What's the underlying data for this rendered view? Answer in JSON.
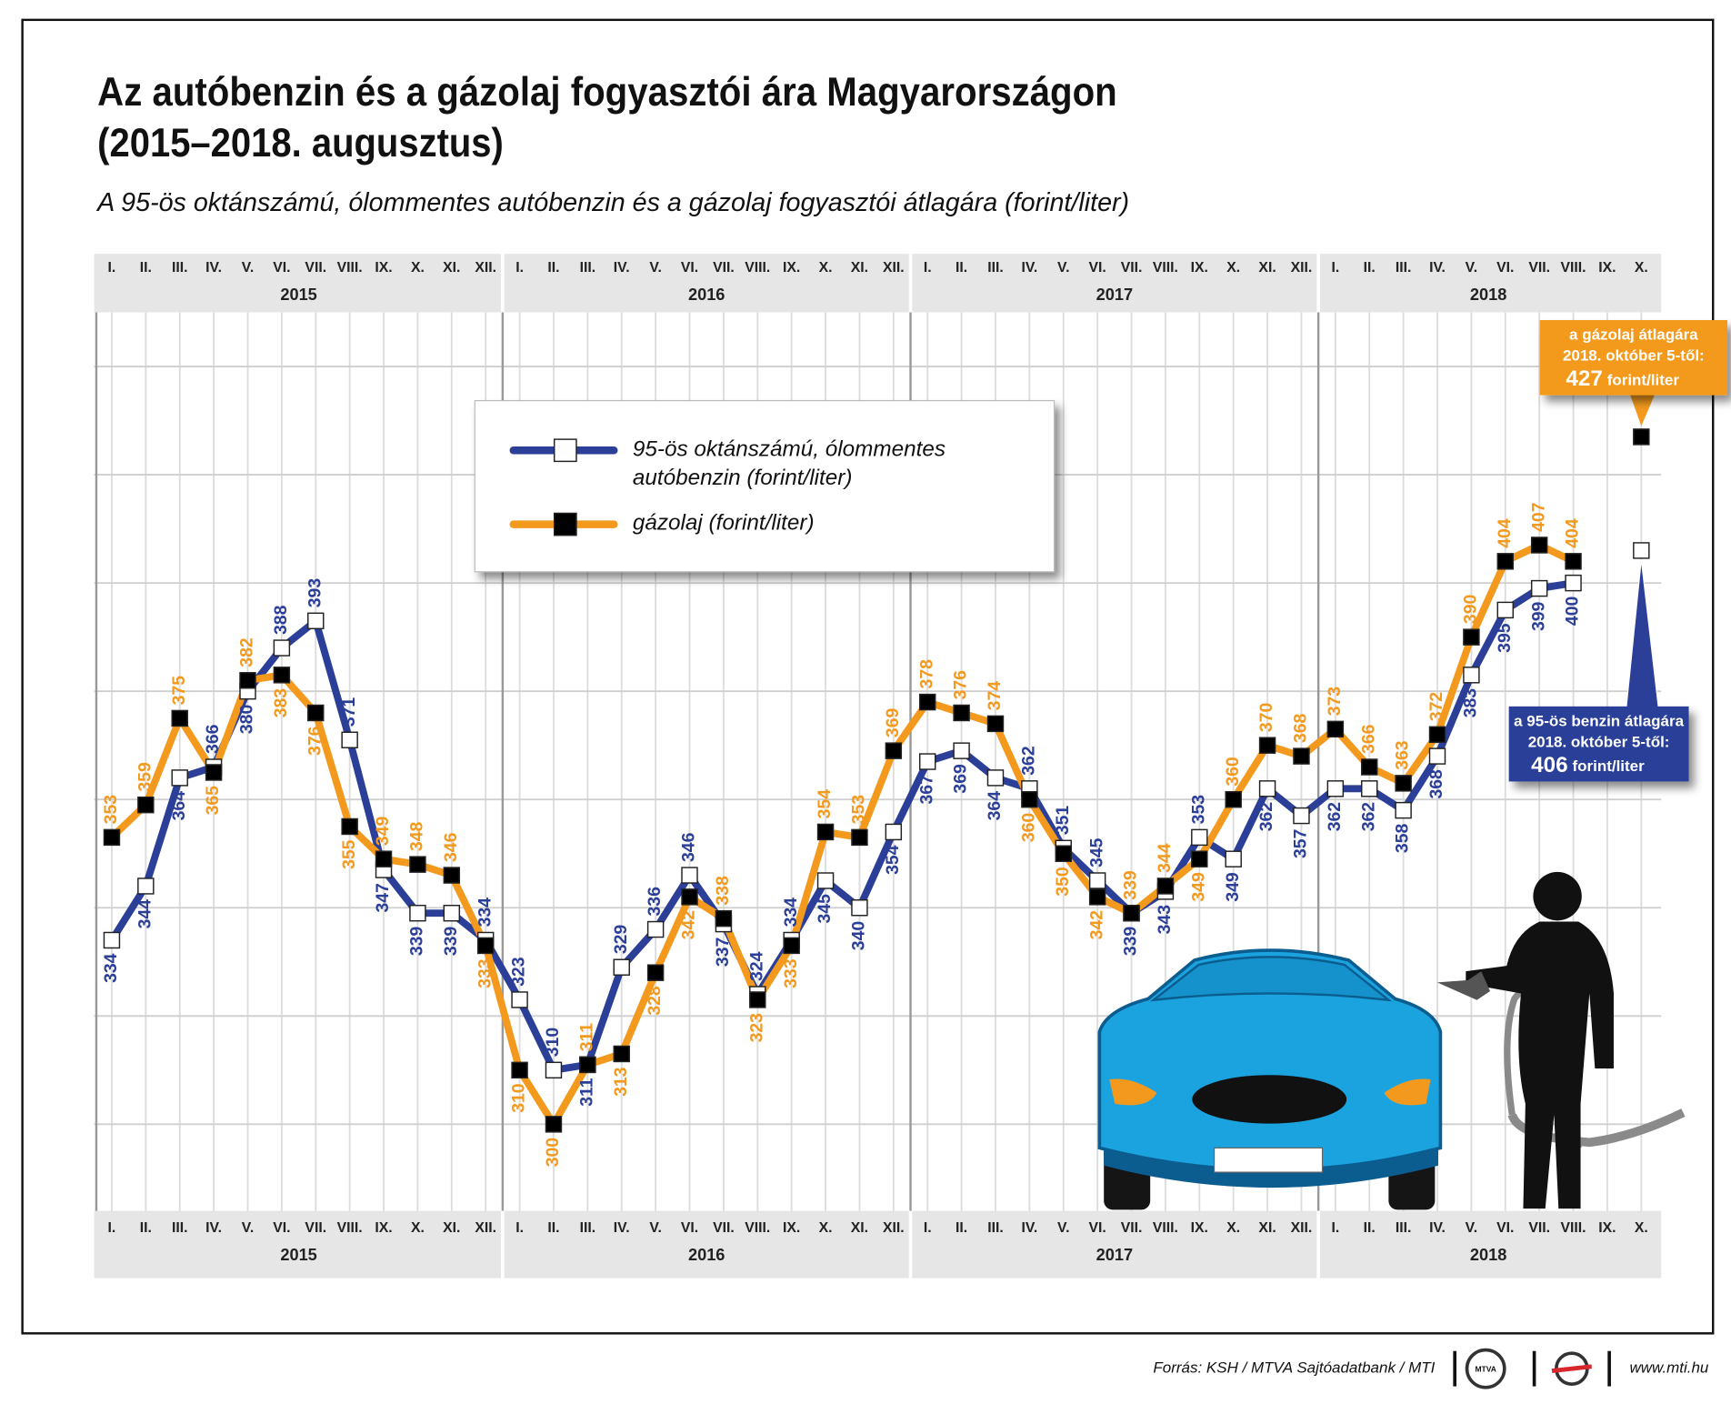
{
  "chart_data": {
    "type": "line",
    "title": [
      "Az autóbenzin és a gázolaj fogyasztói ára Magyarországon",
      "(2015–2018. augusztus)"
    ],
    "subtitle": "A 95-ös oktánszámú, ólommentes autóbenzin és a gázolaj fogyasztói átlagára (forint/liter)",
    "categories": [
      "I.",
      "II.",
      "III.",
      "IV.",
      "V.",
      "VI.",
      "VII.",
      "VIII.",
      "IX.",
      "X.",
      "XI.",
      "XII.",
      "I.",
      "II.",
      "III.",
      "IV.",
      "V.",
      "VI.",
      "VII.",
      "VIII.",
      "IX.",
      "X.",
      "XI.",
      "XII.",
      "I.",
      "II.",
      "III.",
      "IV.",
      "V.",
      "VI.",
      "VII.",
      "VIII.",
      "IX.",
      "X.",
      "XI.",
      "XII.",
      "I.",
      "II.",
      "III.",
      "IV.",
      "V.",
      "VI.",
      "VII.",
      "VIII.",
      "IX.",
      "X."
    ],
    "years": [
      "2015",
      "2016",
      "2017",
      "2018"
    ],
    "series": [
      {
        "name": "95-ös oktánszámú, ólommentes autóbenzin (forint/liter)",
        "color": "#2b3f98",
        "marker_color": "#ffffff",
        "values": [
          334,
          344,
          364,
          366,
          380,
          388,
          393,
          371,
          347,
          339,
          339,
          334,
          323,
          310,
          311,
          329,
          336,
          346,
          337,
          324,
          334,
          345,
          340,
          354,
          367,
          369,
          364,
          362,
          351,
          345,
          339,
          343,
          353,
          349,
          362,
          357,
          362,
          362,
          358,
          368,
          383,
          395,
          399,
          400,
          null,
          406
        ],
        "annotation": {
          "lines": [
            "a 95-ös benzin átlagára",
            "2018. október 5-től:"
          ],
          "unit": "forint/liter"
        }
      },
      {
        "name": "gázolaj (forint/liter)",
        "color": "#f39a1e",
        "marker_color": "#000000",
        "values": [
          353,
          359,
          375,
          365,
          382,
          383,
          376,
          355,
          349,
          348,
          346,
          333,
          310,
          300,
          311,
          313,
          328,
          342,
          338,
          323,
          333,
          354,
          353,
          369,
          378,
          376,
          374,
          360,
          350,
          342,
          339,
          344,
          349,
          360,
          370,
          368,
          373,
          366,
          363,
          372,
          390,
          404,
          407,
          404,
          null,
          427
        ],
        "annotation": {
          "lines": [
            "a gázolaj átlagára",
            "2018. október 5-től:"
          ],
          "unit": "forint/liter"
        }
      }
    ],
    "ylim": [
      284,
      450
    ],
    "yticks": [
      300,
      320,
      340,
      360,
      380,
      400,
      420,
      440
    ],
    "grid": true
  },
  "footer": {
    "source": "Forrás: KSH / MTVA Sajtóadatbank / MTI",
    "logo": "MTVA",
    "url": "www.mti.hu"
  }
}
